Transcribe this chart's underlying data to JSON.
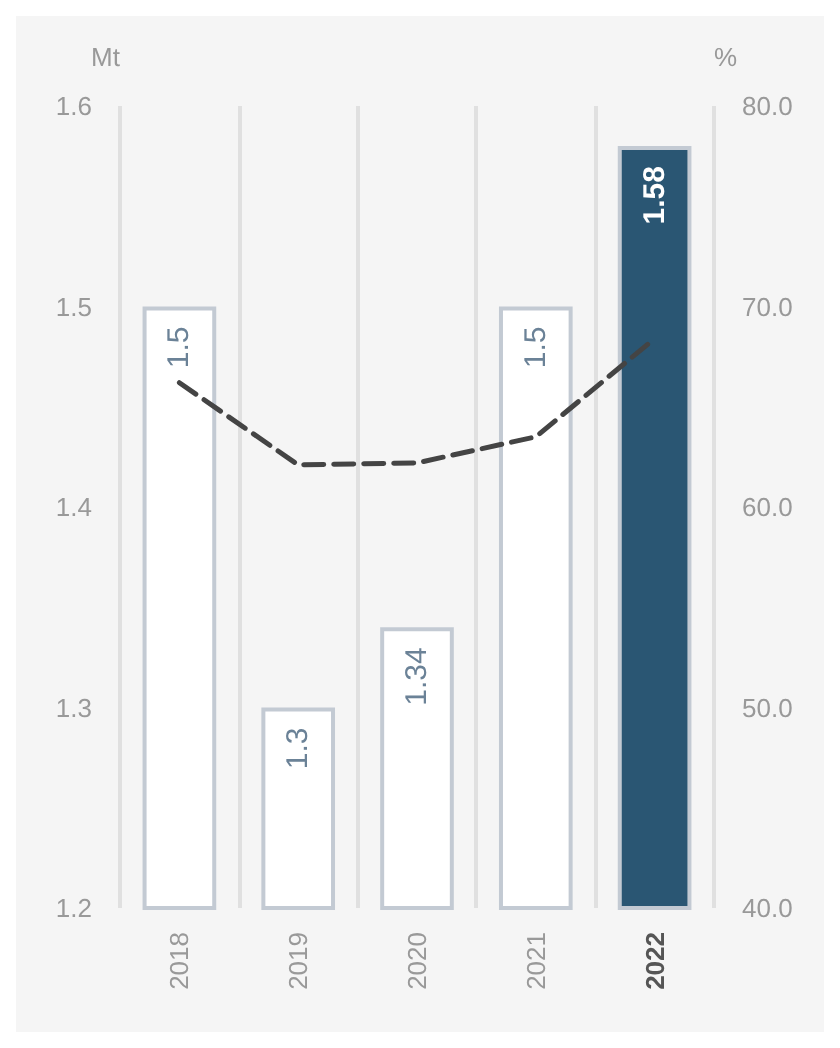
{
  "chart_data": {
    "type": "bar",
    "ylabel": "Mt",
    "y2label": "%",
    "categories": [
      "2018",
      "2019",
      "2020",
      "2021",
      "2022"
    ],
    "series": [
      {
        "colors": [
          "#ffffff",
          "#ffffff",
          "#ffffff",
          "#ffffff",
          "#2a5673"
        ],
        "values": [
          1.5,
          1.3,
          1.34,
          1.5,
          1.58
        ],
        "value_labels": [
          "1.5",
          "1.3",
          "1.34",
          "1.5",
          "1.58"
        ]
      },
      {
        "type": "line",
        "axis": "y2",
        "color": "#444444",
        "line_style": "dashed",
        "marker": "none",
        "values": [
          66.2,
          62.1,
          62.2,
          63.5,
          68.4
        ]
      }
    ],
    "ylim": [
      1.2,
      1.6
    ],
    "yticks": [
      1.2,
      1.3,
      1.4,
      1.5,
      1.6
    ],
    "y2lim": [
      40,
      80
    ],
    "y2ticks": [
      {
        "value": 40,
        "label": "40.0"
      },
      {
        "value": 50,
        "label": "50.0"
      },
      {
        "value": 60,
        "label": "60.0"
      },
      {
        "value": 70,
        "label": "70.0"
      },
      {
        "value": 80,
        "label": "80.0"
      }
    ],
    "grid": "x"
  }
}
